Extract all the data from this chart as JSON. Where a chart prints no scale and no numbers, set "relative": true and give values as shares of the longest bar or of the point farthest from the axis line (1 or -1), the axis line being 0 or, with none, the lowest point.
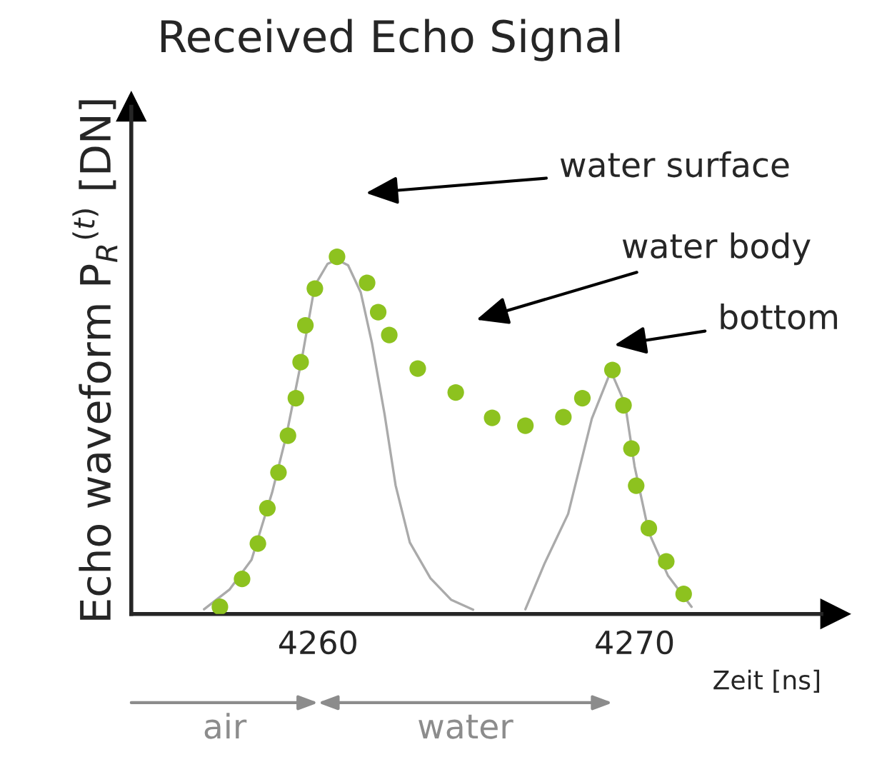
{
  "chart_data": {
    "type": "scatter",
    "title": "Received Echo Signal",
    "xlabel": "Zeit [ns]",
    "ylabel": "Echo waveform P$_{R}$$^{(t)}$ [DN]",
    "relative": true,
    "xlim": [
      4254.1,
      4275.9
    ],
    "xticks": [
      4260,
      4270
    ],
    "grid": false,
    "legend": false,
    "annotations": [
      "water surface",
      "water body",
      "bottom",
      "air",
      "water"
    ],
    "series": [
      {
        "type": "line",
        "marker": "none",
        "color": "#aaaaaa",
        "line_style": "solid",
        "x": [
          4256.4,
          4257.2,
          4257.9,
          4258.55,
          4259.0,
          4259.5,
          4259.9,
          4260.3,
          4260.6,
          4260.95,
          4261.35,
          4261.7,
          4262.1,
          4262.45,
          4262.9,
          4263.55,
          4264.2,
          4264.9
        ],
        "values": [
          0.013,
          0.068,
          0.152,
          0.34,
          0.5,
          0.72,
          0.92,
          0.98,
          0.992,
          0.976,
          0.9,
          0.76,
          0.56,
          0.36,
          0.2,
          0.1,
          0.04,
          0.012
        ]
      },
      {
        "type": "line",
        "marker": "none",
        "color": "#aaaaaa",
        "line_style": "solid",
        "x": [
          4266.55,
          4267.15,
          4267.9,
          4268.65,
          4269.25,
          4269.7,
          4270.0,
          4270.45,
          4271.05,
          4271.8
        ],
        "values": [
          0.013,
          0.14,
          0.28,
          0.547,
          0.68,
          0.588,
          0.413,
          0.228,
          0.108,
          0.02
        ]
      },
      {
        "marker": "circle",
        "color": "#8dc21f",
        "x": [
          4256.9,
          4257.6,
          4258.1,
          4258.4,
          4258.75,
          4259.05,
          4259.3,
          4259.45,
          4259.6,
          4259.9,
          4260.6,
          4261.55,
          4261.9,
          4262.25,
          4263.15,
          4264.35,
          4265.5,
          4266.55,
          4267.75,
          4268.35,
          4269.3,
          4269.65,
          4269.9,
          4270.05,
          4270.45,
          4271.0,
          4271.55
        ],
        "values": [
          0.02,
          0.098,
          0.197,
          0.296,
          0.396,
          0.499,
          0.604,
          0.705,
          0.808,
          0.911,
          1.0,
          0.927,
          0.845,
          0.781,
          0.687,
          0.62,
          0.549,
          0.527,
          0.551,
          0.604,
          0.683,
          0.584,
          0.463,
          0.359,
          0.24,
          0.147,
          0.056
        ]
      }
    ]
  }
}
